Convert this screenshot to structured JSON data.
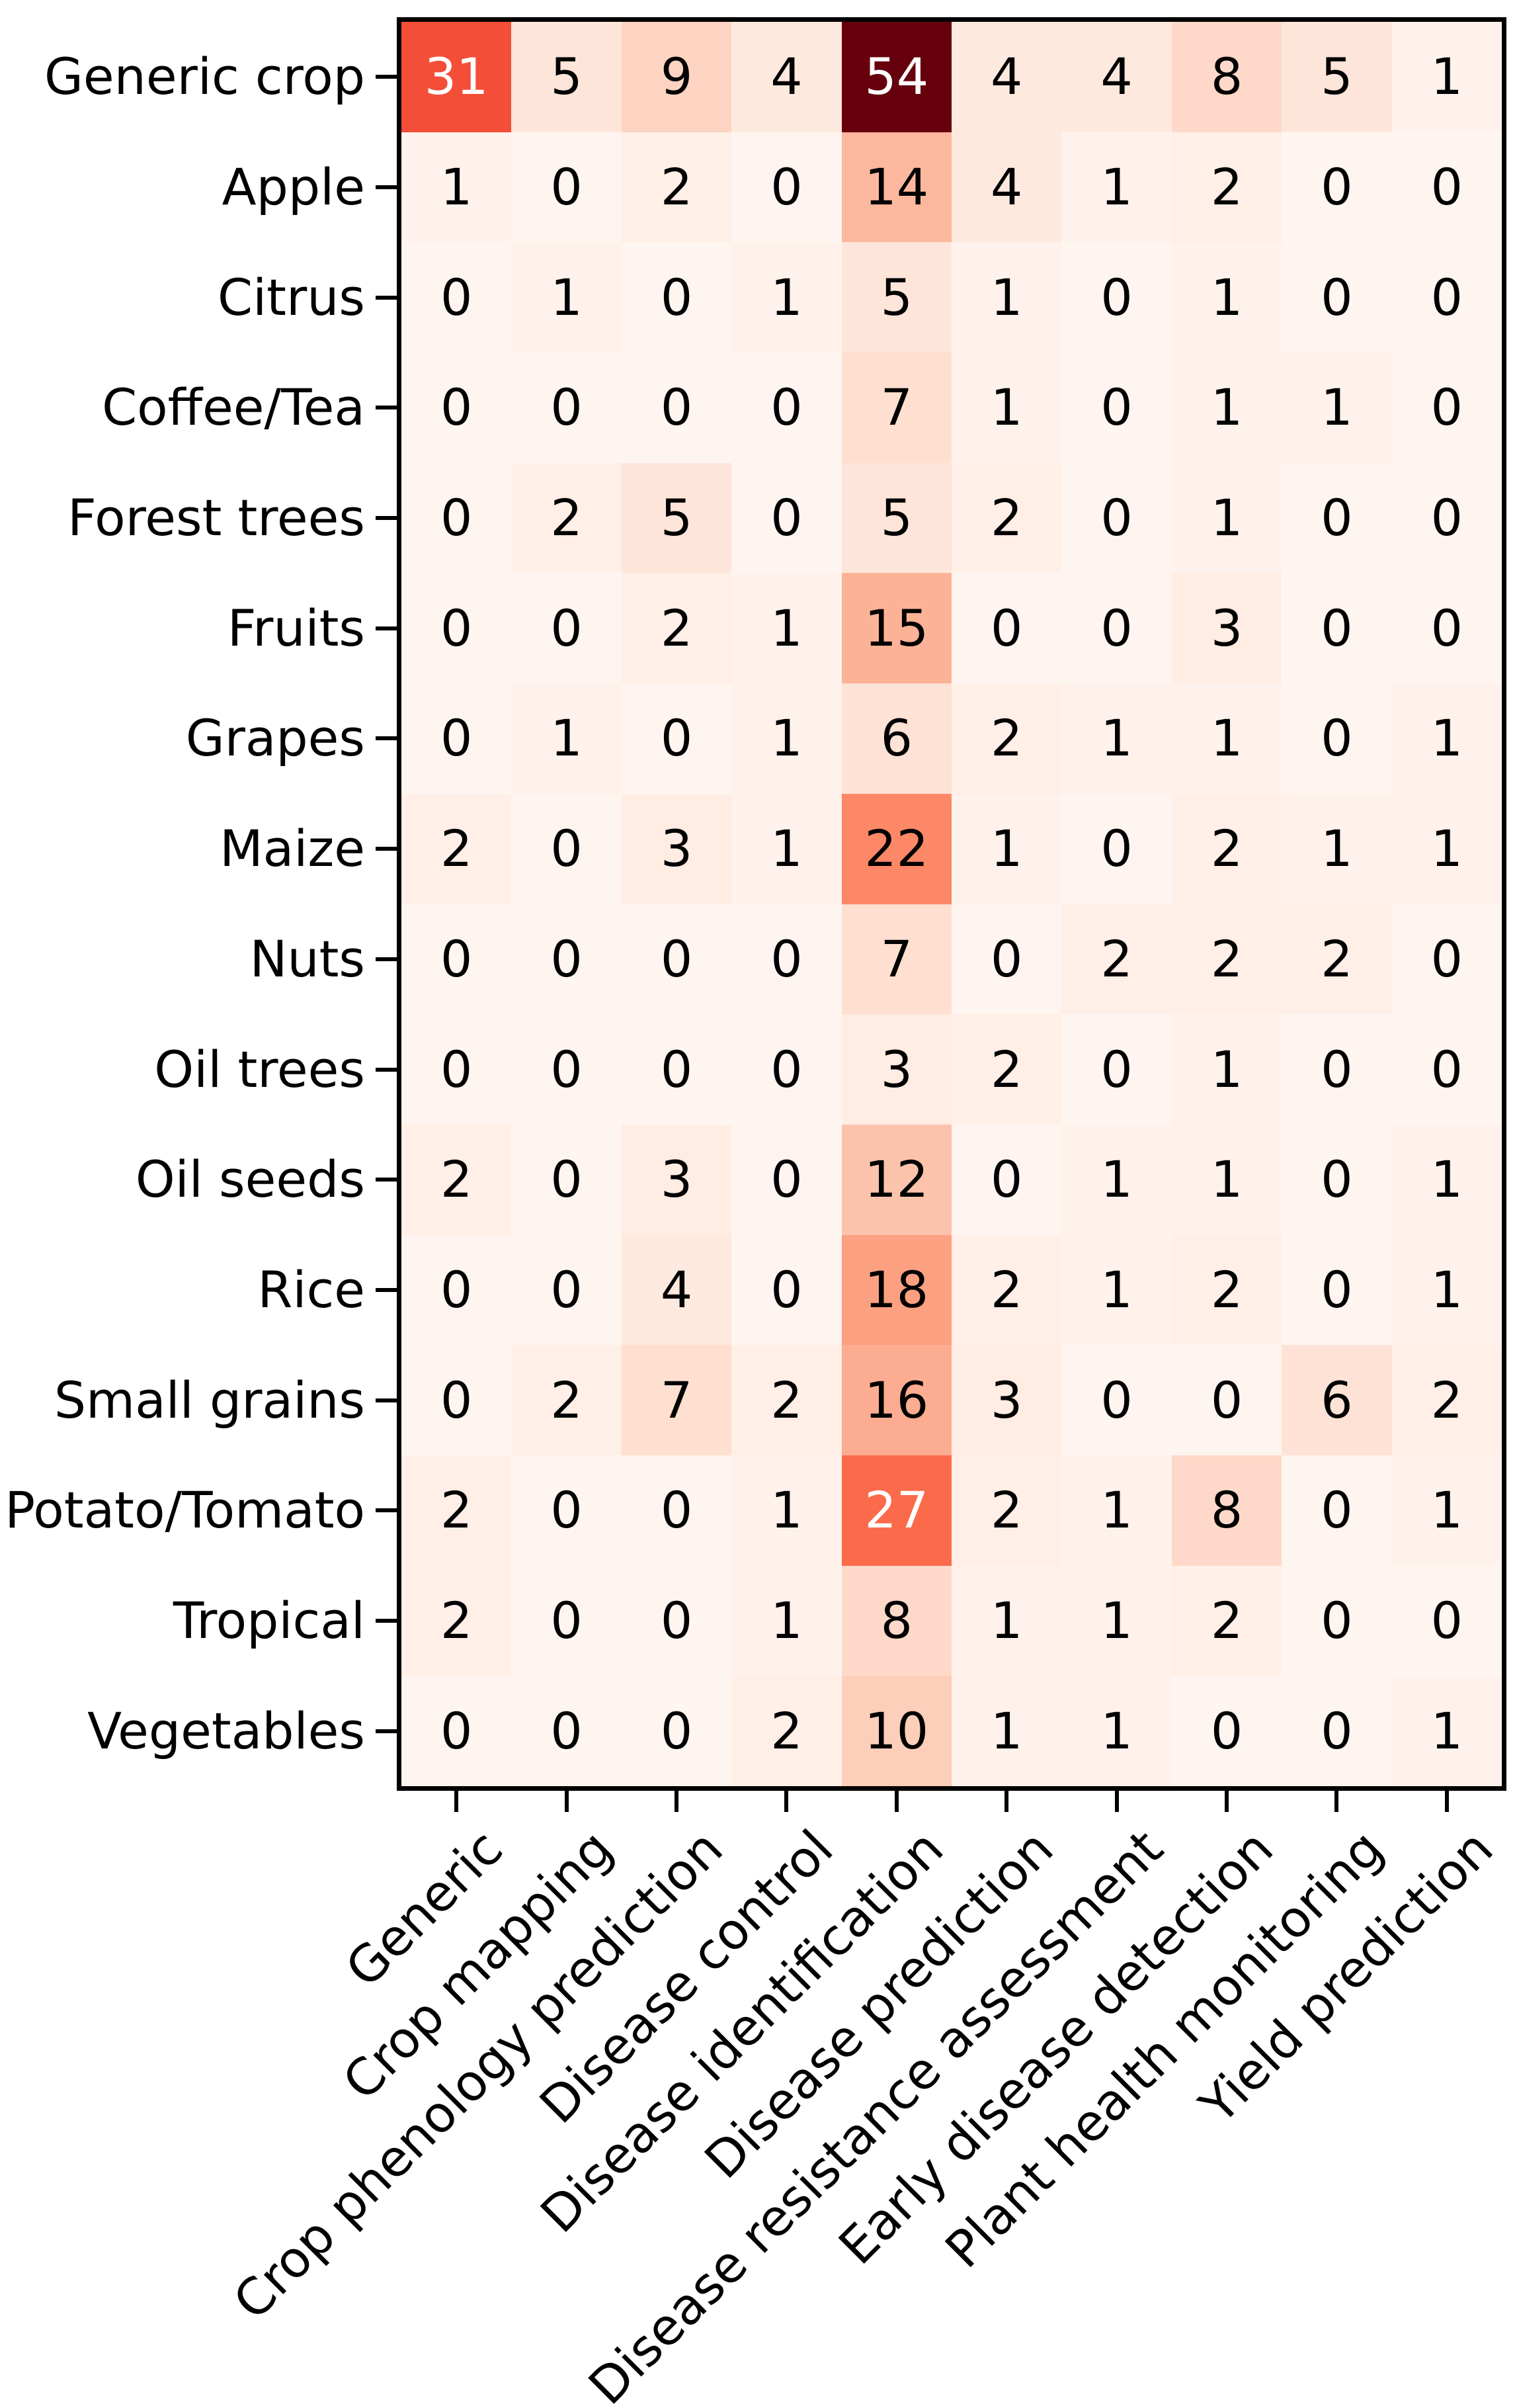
{
  "chart_data": {
    "type": "heatmap",
    "title": "",
    "xlabel": "",
    "ylabel": "",
    "rows": [
      "Generic crop",
      "Apple",
      "Citrus",
      "Coffee/Tea",
      "Forest trees",
      "Fruits",
      "Grapes",
      "Maize",
      "Nuts",
      "Oil trees",
      "Oil seeds",
      "Rice",
      "Small grains",
      "Potato/Tomato",
      "Tropical",
      "Vegetables"
    ],
    "columns": [
      "Generic",
      "Crop mapping",
      "Crop phenology prediction",
      "Disease control",
      "Disease identification",
      "Disease prediction",
      "Disease resistance assessment",
      "Early disease detection",
      "Plant health monitoring",
      "Yield prediction"
    ],
    "values": [
      [
        31,
        5,
        9,
        4,
        54,
        4,
        4,
        8,
        5,
        1
      ],
      [
        1,
        0,
        2,
        0,
        14,
        4,
        1,
        2,
        0,
        0
      ],
      [
        0,
        1,
        0,
        1,
        5,
        1,
        0,
        1,
        0,
        0
      ],
      [
        0,
        0,
        0,
        0,
        7,
        1,
        0,
        1,
        1,
        0
      ],
      [
        0,
        2,
        5,
        0,
        5,
        2,
        0,
        1,
        0,
        0
      ],
      [
        0,
        0,
        2,
        1,
        15,
        0,
        0,
        3,
        0,
        0
      ],
      [
        0,
        1,
        0,
        1,
        6,
        2,
        1,
        1,
        0,
        1
      ],
      [
        2,
        0,
        3,
        1,
        22,
        1,
        0,
        2,
        1,
        1
      ],
      [
        0,
        0,
        0,
        0,
        7,
        0,
        2,
        2,
        2,
        0
      ],
      [
        0,
        0,
        0,
        0,
        3,
        2,
        0,
        1,
        0,
        0
      ],
      [
        2,
        0,
        3,
        0,
        12,
        0,
        1,
        1,
        0,
        1
      ],
      [
        0,
        0,
        4,
        0,
        18,
        2,
        1,
        2,
        0,
        1
      ],
      [
        0,
        2,
        7,
        2,
        16,
        3,
        0,
        0,
        6,
        2
      ],
      [
        2,
        0,
        0,
        1,
        27,
        2,
        1,
        8,
        0,
        1
      ],
      [
        2,
        0,
        0,
        1,
        8,
        1,
        1,
        2,
        0,
        0
      ],
      [
        0,
        0,
        0,
        2,
        10,
        1,
        1,
        0,
        0,
        1
      ]
    ],
    "vmin": 0,
    "vmax": 54,
    "colormap": "Reds",
    "colormap_stops": [
      "#fff5f0",
      "#fee0d2",
      "#fcbba1",
      "#fc9272",
      "#fb6a4a",
      "#ef3b2c",
      "#cb181d",
      "#a50f15",
      "#67000d"
    ],
    "annotation_color_light_cells": "#000000",
    "annotation_color_dark_cells": "#ffffff",
    "white_text_threshold": 0.5,
    "frame_color": "#000000",
    "background_color": "#ffffff",
    "grid": "off",
    "legend": "none",
    "x_tick_rotation_deg": 45
  }
}
